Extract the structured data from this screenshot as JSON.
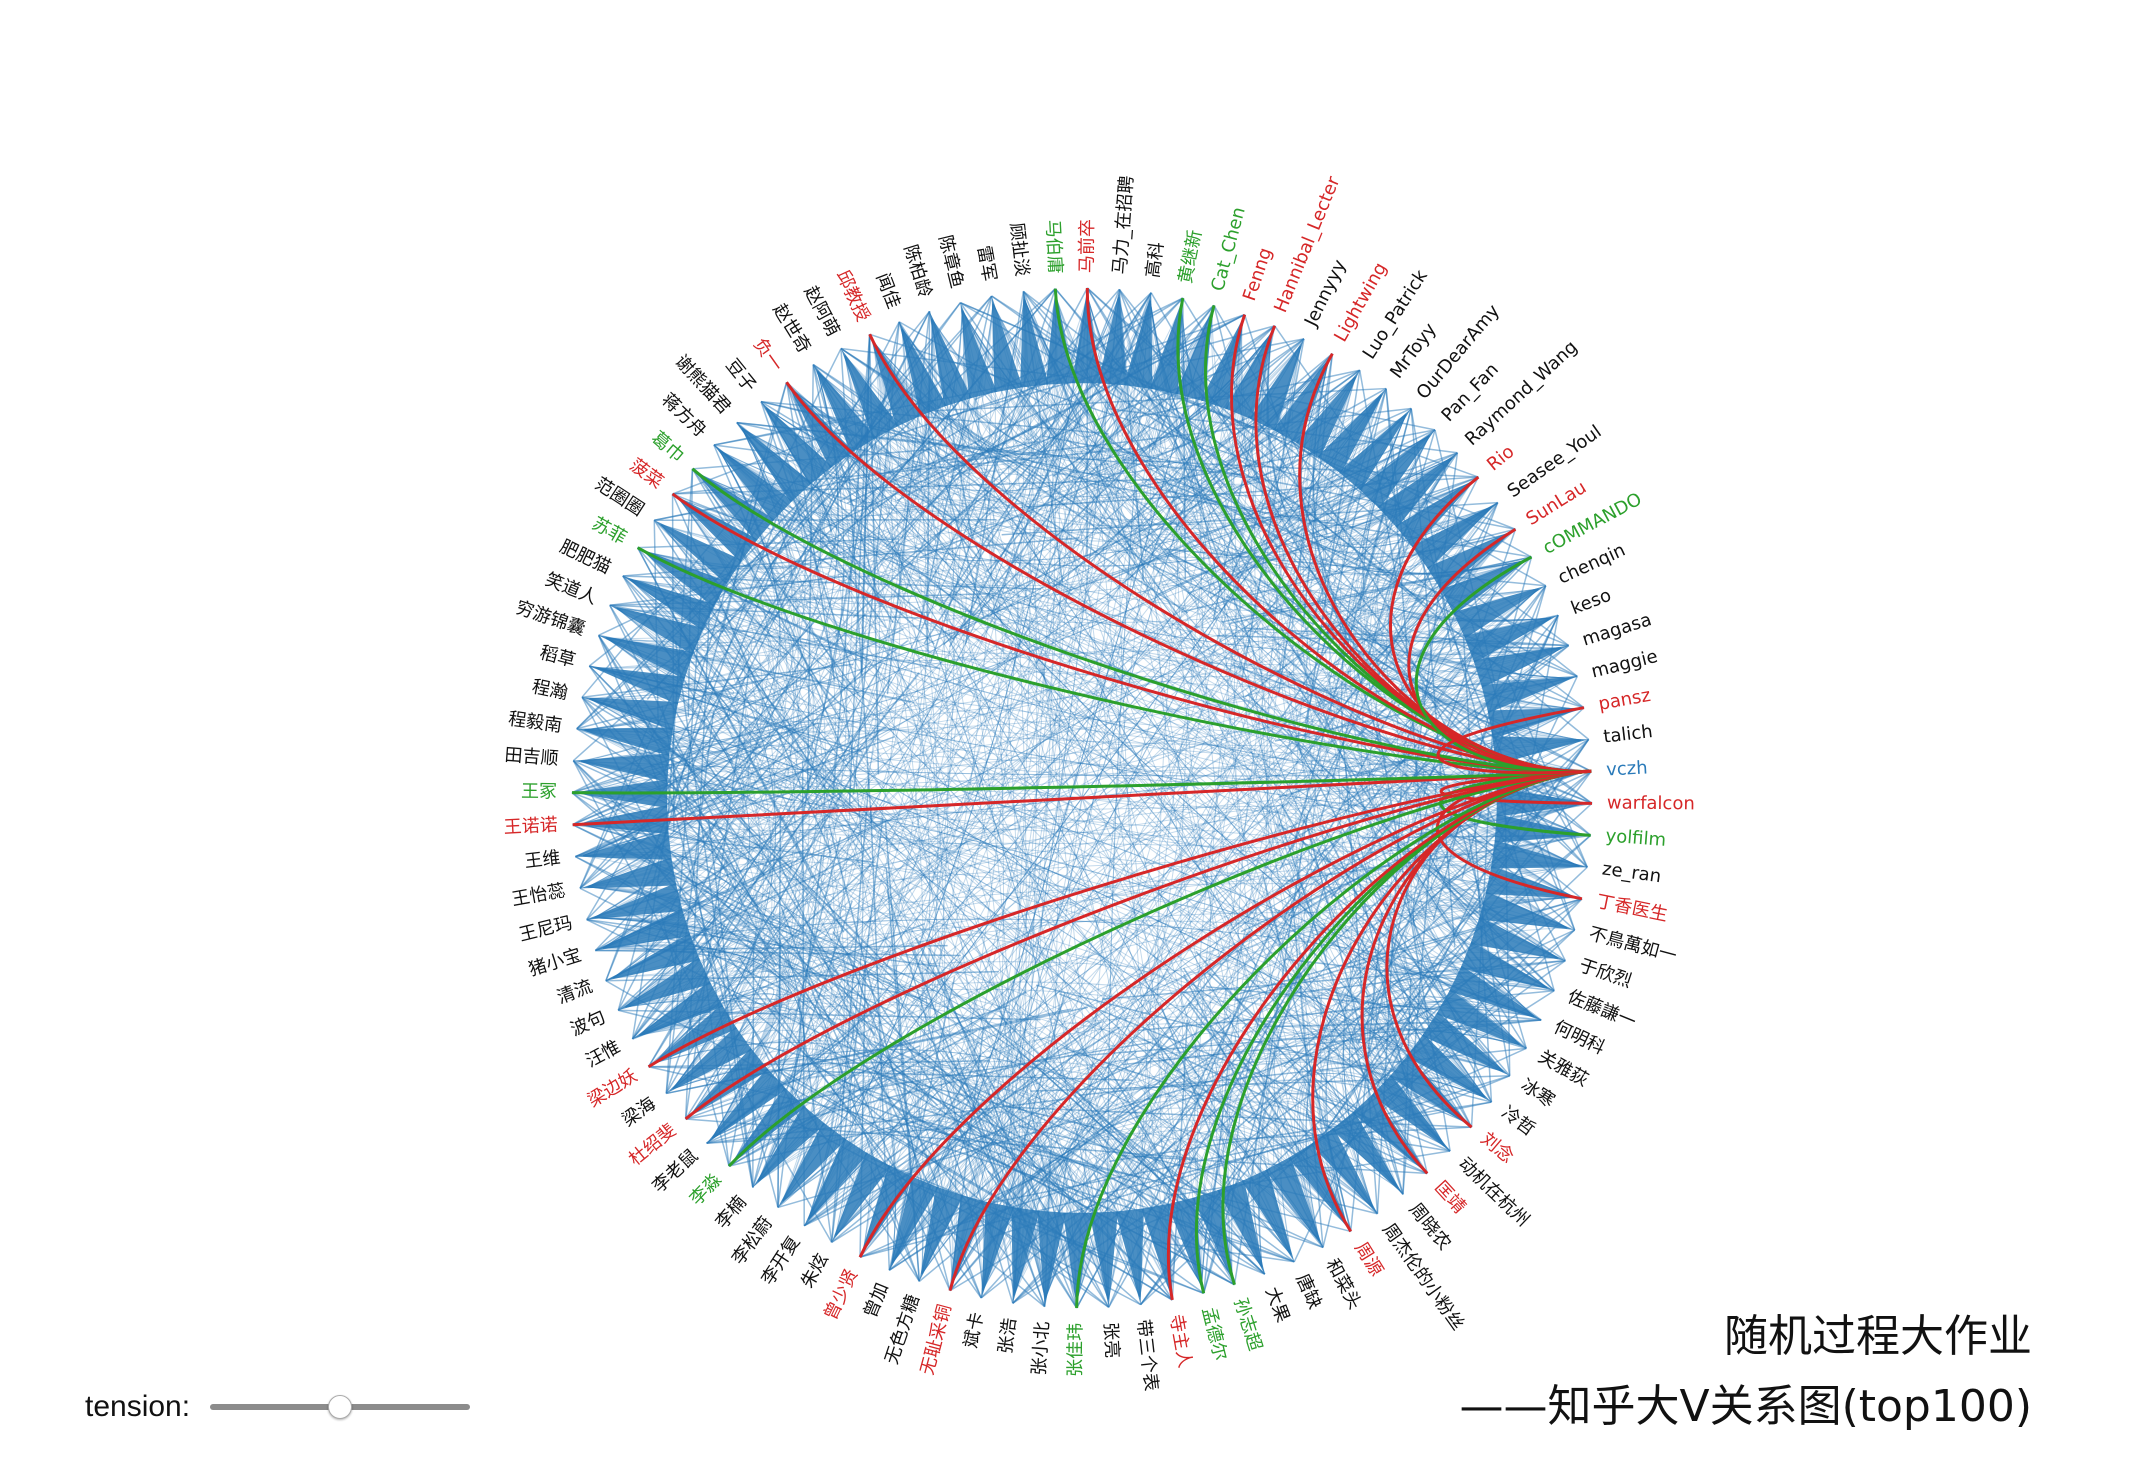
{
  "title": {
    "line1": "随机过程大作业",
    "line2": "——知乎大V关系图(top100)"
  },
  "controls": {
    "tension_label": "tension:",
    "tension_value": 0.5
  },
  "colors": {
    "edge_default": "#2a7ab9",
    "edge_red": "#d62728",
    "edge_green": "#2ca02c",
    "label_black": "#111111",
    "label_red": "#d62728",
    "label_green": "#2ca02c",
    "label_blue": "#2a7ab9"
  },
  "focus_node": "vczh",
  "nodes": [
    {
      "name": "vczh",
      "color": "blue"
    },
    {
      "name": "warfalcon",
      "color": "red"
    },
    {
      "name": "yolfilm",
      "color": "green"
    },
    {
      "name": "ze_ran",
      "color": "black"
    },
    {
      "name": "丁香医生",
      "color": "red"
    },
    {
      "name": "不鳥萬如一",
      "color": "black"
    },
    {
      "name": "于欣烈",
      "color": "black"
    },
    {
      "name": "佐藤謙一",
      "color": "black"
    },
    {
      "name": "何明科",
      "color": "black"
    },
    {
      "name": "关雅荻",
      "color": "black"
    },
    {
      "name": "冰寒",
      "color": "black"
    },
    {
      "name": "冷哲",
      "color": "black"
    },
    {
      "name": "刘念",
      "color": "red"
    },
    {
      "name": "动机在杭州",
      "color": "black"
    },
    {
      "name": "匡靖",
      "color": "red"
    },
    {
      "name": "周晓农",
      "color": "black"
    },
    {
      "name": "周杰伦的小粉丝",
      "color": "black"
    },
    {
      "name": "周源",
      "color": "red"
    },
    {
      "name": "和菜头",
      "color": "black"
    },
    {
      "name": "唐缺",
      "color": "black"
    },
    {
      "name": "大果",
      "color": "black"
    },
    {
      "name": "孙志超",
      "color": "green"
    },
    {
      "name": "孟德尔",
      "color": "green"
    },
    {
      "name": "寺主人",
      "color": "red"
    },
    {
      "name": "带三个表",
      "color": "black"
    },
    {
      "name": "张亮",
      "color": "black"
    },
    {
      "name": "张佳玮",
      "color": "green"
    },
    {
      "name": "张小北",
      "color": "black"
    },
    {
      "name": "张浩",
      "color": "black"
    },
    {
      "name": "斌卡",
      "color": "black"
    },
    {
      "name": "无耻采铜",
      "color": "red"
    },
    {
      "name": "无色方糖",
      "color": "black"
    },
    {
      "name": "曾加",
      "color": "black"
    },
    {
      "name": "曾少贤",
      "color": "red"
    },
    {
      "name": "朱炫",
      "color": "black"
    },
    {
      "name": "李开复",
      "color": "black"
    },
    {
      "name": "李松蔚",
      "color": "black"
    },
    {
      "name": "李楠",
      "color": "black"
    },
    {
      "name": "李淼",
      "color": "green"
    },
    {
      "name": "李老鼠",
      "color": "black"
    },
    {
      "name": "杜绍斐",
      "color": "red"
    },
    {
      "name": "梁海",
      "color": "black"
    },
    {
      "name": "梁边妖",
      "color": "red"
    },
    {
      "name": "汪惟",
      "color": "black"
    },
    {
      "name": "波句",
      "color": "black"
    },
    {
      "name": "清流",
      "color": "black"
    },
    {
      "name": "猪小宝",
      "color": "black"
    },
    {
      "name": "王尼玛",
      "color": "black"
    },
    {
      "name": "王怡蕊",
      "color": "black"
    },
    {
      "name": "王维",
      "color": "black"
    },
    {
      "name": "王诺诺",
      "color": "red"
    },
    {
      "name": "王冢",
      "color": "green"
    },
    {
      "name": "田吉顺",
      "color": "black"
    },
    {
      "name": "程毅南",
      "color": "black"
    },
    {
      "name": "程瀚",
      "color": "black"
    },
    {
      "name": "稻草",
      "color": "black"
    },
    {
      "name": "穷游锦囊",
      "color": "black"
    },
    {
      "name": "笑道人",
      "color": "black"
    },
    {
      "name": "肥肥猫",
      "color": "black"
    },
    {
      "name": "苏菲",
      "color": "green"
    },
    {
      "name": "范圈圈",
      "color": "black"
    },
    {
      "name": "菠菜",
      "color": "red"
    },
    {
      "name": "葛巾",
      "color": "green"
    },
    {
      "name": "蒋方舟",
      "color": "black"
    },
    {
      "name": "谢熊猫君",
      "color": "black"
    },
    {
      "name": "豆子",
      "color": "black"
    },
    {
      "name": "负一",
      "color": "red"
    },
    {
      "name": "赵世奇",
      "color": "black"
    },
    {
      "name": "赵阿萌",
      "color": "black"
    },
    {
      "name": "邱教授",
      "color": "red"
    },
    {
      "name": "闻佳",
      "color": "black"
    },
    {
      "name": "陈柏龄",
      "color": "black"
    },
    {
      "name": "陈章鱼",
      "color": "black"
    },
    {
      "name": "雷军",
      "color": "black"
    },
    {
      "name": "顾扯淡",
      "color": "black"
    },
    {
      "name": "马伯庸",
      "color": "green"
    },
    {
      "name": "马前卒",
      "color": "red"
    },
    {
      "name": "马力_在招聘",
      "color": "black"
    },
    {
      "name": "高科",
      "color": "black"
    },
    {
      "name": "黄继新",
      "color": "green"
    },
    {
      "name": "Cat_Chen",
      "color": "green"
    },
    {
      "name": "Fenng",
      "color": "red"
    },
    {
      "name": "Hannibal_Lecter",
      "color": "red"
    },
    {
      "name": "Jennyyy",
      "color": "black"
    },
    {
      "name": "Lightwing",
      "color": "red"
    },
    {
      "name": "Luo_Patrick",
      "color": "black"
    },
    {
      "name": "MrToyy",
      "color": "black"
    },
    {
      "name": "OurDearAmy",
      "color": "black"
    },
    {
      "name": "Pan_Fan",
      "color": "black"
    },
    {
      "name": "Raymond_Wang",
      "color": "black"
    },
    {
      "name": "Rio",
      "color": "red"
    },
    {
      "name": "Seasee_Youl",
      "color": "black"
    },
    {
      "name": "SunLau",
      "color": "red"
    },
    {
      "name": "cOMMANDO",
      "color": "green"
    },
    {
      "name": "chenqin",
      "color": "black"
    },
    {
      "name": "keso",
      "color": "black"
    },
    {
      "name": "magasa",
      "color": "black"
    },
    {
      "name": "maggie",
      "color": "black"
    },
    {
      "name": "pansz",
      "color": "red"
    },
    {
      "name": "talich",
      "color": "black"
    }
  ]
}
